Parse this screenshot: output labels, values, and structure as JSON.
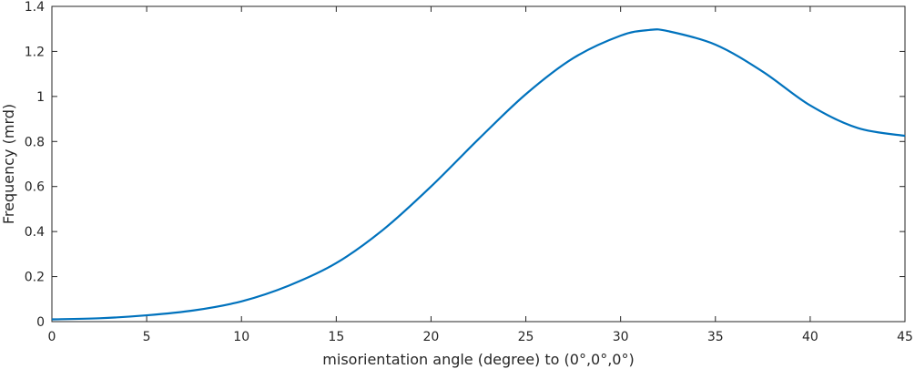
{
  "chart_data": {
    "type": "line",
    "title": "",
    "xlabel": "misorientation angle (degree) to (0°,0°,0°)",
    "ylabel": "Frequency (mrd)",
    "xlim": [
      0,
      45
    ],
    "ylim": [
      0,
      1.4
    ],
    "xticks": [
      0,
      5,
      10,
      15,
      20,
      25,
      30,
      35,
      40,
      45
    ],
    "xtick_labels": [
      "0",
      "5",
      "10",
      "15",
      "20",
      "25",
      "30",
      "35",
      "40",
      "45"
    ],
    "yticks": [
      0,
      0.2,
      0.4,
      0.6,
      0.8,
      1,
      1.2,
      1.4
    ],
    "ytick_labels": [
      "0",
      "0.2",
      "0.4",
      "0.6",
      "0.8",
      "1",
      "1.2",
      "1.4"
    ],
    "grid": false,
    "line_color": "#0072BD",
    "series": [
      {
        "x": [
          0,
          2.5,
          5,
          7.5,
          10,
          12.5,
          15,
          17.5,
          20,
          22.5,
          25,
          27.5,
          30,
          31.5,
          32.5,
          35,
          37.5,
          40,
          42.5,
          45
        ],
        "y": [
          0.01,
          0.015,
          0.028,
          0.05,
          0.09,
          0.16,
          0.26,
          0.41,
          0.6,
          0.81,
          1.01,
          1.17,
          1.27,
          1.295,
          1.29,
          1.23,
          1.11,
          0.96,
          0.86,
          0.825
        ]
      }
    ]
  }
}
